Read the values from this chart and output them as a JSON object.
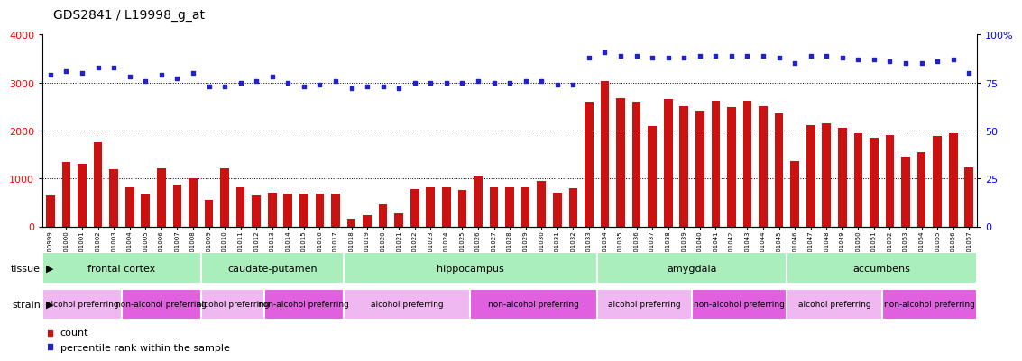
{
  "title": "GDS2841 / L19998_g_at",
  "samples": [
    "GSM100999",
    "GSM101000",
    "GSM101001",
    "GSM101002",
    "GSM101003",
    "GSM101004",
    "GSM101005",
    "GSM101006",
    "GSM101007",
    "GSM101008",
    "GSM101009",
    "GSM101010",
    "GSM101011",
    "GSM101012",
    "GSM101013",
    "GSM101014",
    "GSM101015",
    "GSM101016",
    "GSM101017",
    "GSM101018",
    "GSM101019",
    "GSM101020",
    "GSM101021",
    "GSM101022",
    "GSM101023",
    "GSM101024",
    "GSM101025",
    "GSM101026",
    "GSM101027",
    "GSM101028",
    "GSM101029",
    "GSM101030",
    "GSM101031",
    "GSM101032",
    "GSM101033",
    "GSM101034",
    "GSM101035",
    "GSM101036",
    "GSM101037",
    "GSM101038",
    "GSM101039",
    "GSM101040",
    "GSM101041",
    "GSM101042",
    "GSM101043",
    "GSM101044",
    "GSM101045",
    "GSM101046",
    "GSM101047",
    "GSM101048",
    "GSM101049",
    "GSM101050",
    "GSM101051",
    "GSM101052",
    "GSM101053",
    "GSM101054",
    "GSM101055",
    "GSM101056",
    "GSM101057"
  ],
  "counts": [
    650,
    1350,
    1300,
    1750,
    1200,
    820,
    660,
    1220,
    870,
    1000,
    560,
    1220,
    820,
    650,
    700,
    680,
    690,
    680,
    690,
    170,
    240,
    470,
    280,
    780,
    820,
    820,
    760,
    1050,
    820,
    820,
    820,
    950,
    700,
    800,
    2600,
    3030,
    2680,
    2600,
    2100,
    2650,
    2500,
    2420,
    2620,
    2480,
    2620,
    2500,
    2350,
    1370,
    2120,
    2160,
    2050,
    1950,
    1850,
    1900,
    1450,
    1550,
    1890,
    1950,
    1230
  ],
  "percentiles": [
    79,
    81,
    80,
    83,
    83,
    78,
    76,
    79,
    77,
    80,
    73,
    73,
    75,
    76,
    78,
    75,
    73,
    74,
    76,
    72,
    73,
    73,
    72,
    75,
    75,
    75,
    75,
    76,
    75,
    75,
    76,
    76,
    74,
    74,
    88,
    91,
    89,
    89,
    88,
    88,
    88,
    89,
    89,
    89,
    89,
    89,
    88,
    85,
    89,
    89,
    88,
    87,
    87,
    86,
    85,
    85,
    86,
    87,
    80
  ],
  "tissues": [
    {
      "name": "frontal cortex",
      "start": 0,
      "end": 10
    },
    {
      "name": "caudate-putamen",
      "start": 10,
      "end": 19
    },
    {
      "name": "hippocampus",
      "start": 19,
      "end": 35
    },
    {
      "name": "amygdala",
      "start": 35,
      "end": 47
    },
    {
      "name": "accumbens",
      "start": 47,
      "end": 59
    }
  ],
  "strains": [
    {
      "name": "alcohol preferring",
      "start": 0,
      "end": 5,
      "type": "alcohol"
    },
    {
      "name": "non-alcohol preferring",
      "start": 5,
      "end": 10,
      "type": "non"
    },
    {
      "name": "alcohol preferring",
      "start": 10,
      "end": 14,
      "type": "alcohol"
    },
    {
      "name": "non-alcohol preferring",
      "start": 14,
      "end": 19,
      "type": "non"
    },
    {
      "name": "alcohol preferring",
      "start": 19,
      "end": 27,
      "type": "alcohol"
    },
    {
      "name": "non-alcohol preferring",
      "start": 27,
      "end": 35,
      "type": "non"
    },
    {
      "name": "alcohol preferring",
      "start": 35,
      "end": 41,
      "type": "alcohol"
    },
    {
      "name": "non-alcohol preferring",
      "start": 41,
      "end": 47,
      "type": "non"
    },
    {
      "name": "alcohol preferring",
      "start": 47,
      "end": 53,
      "type": "alcohol"
    },
    {
      "name": "non-alcohol preferring",
      "start": 53,
      "end": 59,
      "type": "non"
    }
  ],
  "bar_color": "#cc1111",
  "dot_color": "#2222cc",
  "tissue_color": "#aaeebb",
  "strain_alcohol_color": "#f0b8f0",
  "strain_non_color": "#e060e0",
  "left_ylim": [
    0,
    4000
  ],
  "right_ylim": [
    0,
    100
  ],
  "left_yticks": [
    0,
    1000,
    2000,
    3000,
    4000
  ],
  "right_yticks": [
    0,
    25,
    50,
    75,
    100
  ],
  "right_yticklabels": [
    "0",
    "25",
    "50",
    "75",
    "100%"
  ],
  "hgrid_values": [
    1000,
    2000,
    3000
  ]
}
